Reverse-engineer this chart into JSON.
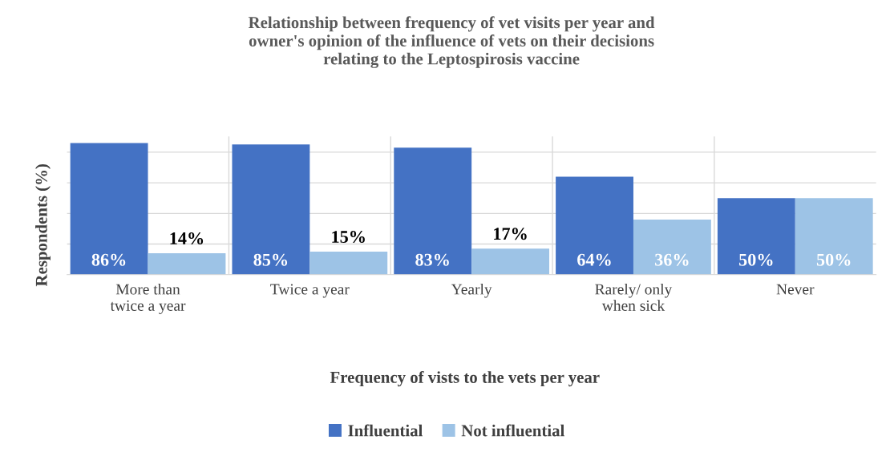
{
  "chart_data": {
    "type": "bar",
    "title": "Relationship between frequency of vet visits per year and\nowner's opinion of the influence of vets on their decisions\nrelating to the Leptospirosis vaccine",
    "xlabel": "Frequency of vists to the vets per year",
    "ylabel": "Respondents (%)",
    "categories": [
      "More than\ntwice a year",
      "Twice a year",
      "Yearly",
      "Rarely/ only\nwhen sick",
      "Never"
    ],
    "series": [
      {
        "name": "Influential",
        "color": "#4472c4",
        "values": [
          86,
          85,
          83,
          64,
          50
        ],
        "value_labels": [
          "86%",
          "85%",
          "83%",
          "64%",
          "50%"
        ]
      },
      {
        "name": "Not influential",
        "color": "#9dc3e6",
        "values": [
          14,
          15,
          17,
          36,
          50
        ],
        "value_labels": [
          "14%",
          "15%",
          "17%",
          "36%",
          "50%"
        ]
      }
    ],
    "tick_labels": "x",
    "grid": true,
    "legend": "bottom"
  }
}
